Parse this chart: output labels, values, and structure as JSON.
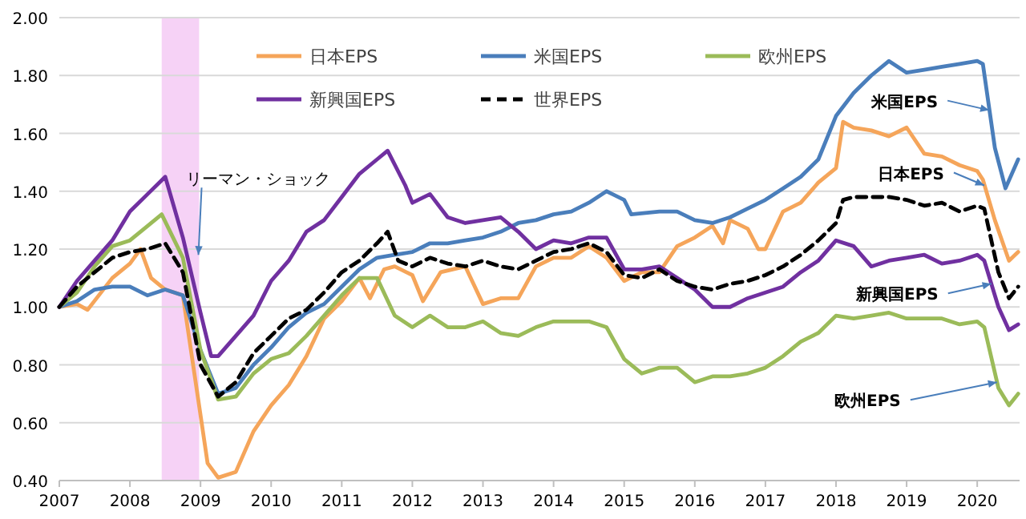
{
  "chart_data": {
    "type": "line",
    "xlim": [
      2007,
      2020.6
    ],
    "xticks": [
      2007,
      2008,
      2009,
      2010,
      2011,
      2012,
      2013,
      2014,
      2015,
      2016,
      2017,
      2018,
      2019,
      2020
    ],
    "ylim": [
      0.4,
      2.0
    ],
    "yticks": [
      {
        "value": 0.4,
        "label": "0.40"
      },
      {
        "value": 0.6,
        "label": "0.60"
      },
      {
        "value": 0.8,
        "label": "0.80"
      },
      {
        "value": 1.0,
        "label": "1.00"
      },
      {
        "value": 1.2,
        "label": "1.20"
      },
      {
        "value": 1.4,
        "label": "1.40"
      },
      {
        "value": 1.6,
        "label": "1.60"
      },
      {
        "value": 1.8,
        "label": "1.80"
      },
      {
        "value": 2.0,
        "label": "2.00"
      }
    ],
    "grid": "y",
    "legend": "top",
    "bands": [
      {
        "axis": "x",
        "from": 2008.45,
        "to": 2008.98,
        "color": "#f6d2f6"
      }
    ],
    "annotations": [
      {
        "text": "リーマン・ショック",
        "x": 2008.97,
        "y": 1.18
      },
      {
        "text": "米国EPS",
        "x": 2020.17,
        "y": 1.68
      },
      {
        "text": "日本EPS",
        "x": 2020.1,
        "y": 1.42
      },
      {
        "text": "新興国EPS",
        "x": 2020.2,
        "y": 1.08
      },
      {
        "text": "欧州EPS",
        "x": 2020.28,
        "y": 0.74
      }
    ],
    "series": [
      {
        "name": "日本EPS",
        "color": "#f5a55a",
        "x": [
          2007,
          2007.25,
          2007.4,
          2007.75,
          2008,
          2008.15,
          2008.3,
          2008.5,
          2008.75,
          2009.1,
          2009.25,
          2009.5,
          2009.75,
          2010,
          2010.25,
          2010.5,
          2010.75,
          2011,
          2011.25,
          2011.4,
          2011.6,
          2011.75,
          2012,
          2012.15,
          2012.4,
          2012.75,
          2013,
          2013.25,
          2013.5,
          2013.75,
          2014,
          2014.25,
          2014.5,
          2014.75,
          2015,
          2015.25,
          2015.5,
          2015.75,
          2016,
          2016.25,
          2016.4,
          2016.5,
          2016.75,
          2016.9,
          2017,
          2017.25,
          2017.5,
          2017.75,
          2018,
          2018.1,
          2018.25,
          2018.5,
          2018.75,
          2019,
          2019.25,
          2019.5,
          2019.75,
          2020,
          2020.08,
          2020.25,
          2020.45,
          2020.58
        ],
        "values": [
          1.0,
          1.01,
          0.99,
          1.1,
          1.15,
          1.2,
          1.1,
          1.06,
          1.04,
          0.46,
          0.41,
          0.43,
          0.57,
          0.66,
          0.73,
          0.83,
          0.96,
          1.02,
          1.1,
          1.03,
          1.13,
          1.14,
          1.11,
          1.02,
          1.12,
          1.14,
          1.01,
          1.03,
          1.03,
          1.14,
          1.17,
          1.17,
          1.21,
          1.17,
          1.09,
          1.12,
          1.12,
          1.21,
          1.24,
          1.28,
          1.22,
          1.3,
          1.27,
          1.2,
          1.2,
          1.33,
          1.36,
          1.43,
          1.48,
          1.64,
          1.62,
          1.61,
          1.59,
          1.62,
          1.53,
          1.52,
          1.49,
          1.47,
          1.44,
          1.3,
          1.16,
          1.19
        ]
      },
      {
        "name": "米国EPS",
        "color": "#4a7ebb",
        "x": [
          2007,
          2007.25,
          2007.5,
          2007.75,
          2008,
          2008.25,
          2008.5,
          2008.75,
          2009,
          2009.25,
          2009.5,
          2009.75,
          2010,
          2010.25,
          2010.5,
          2010.75,
          2011,
          2011.25,
          2011.5,
          2011.75,
          2012,
          2012.25,
          2012.5,
          2012.75,
          2013,
          2013.25,
          2013.5,
          2013.75,
          2014,
          2014.25,
          2014.5,
          2014.75,
          2015,
          2015.1,
          2015.5,
          2015.75,
          2016,
          2016.25,
          2016.5,
          2016.75,
          2017,
          2017.25,
          2017.5,
          2017.75,
          2018,
          2018.25,
          2018.5,
          2018.75,
          2019,
          2019.25,
          2019.5,
          2019.75,
          2020,
          2020.08,
          2020.25,
          2020.4,
          2020.58
        ],
        "values": [
          1.0,
          1.02,
          1.06,
          1.07,
          1.07,
          1.04,
          1.06,
          1.04,
          0.85,
          0.7,
          0.72,
          0.8,
          0.86,
          0.93,
          0.98,
          1.01,
          1.07,
          1.13,
          1.17,
          1.18,
          1.19,
          1.22,
          1.22,
          1.23,
          1.24,
          1.26,
          1.29,
          1.3,
          1.32,
          1.33,
          1.36,
          1.4,
          1.37,
          1.32,
          1.33,
          1.33,
          1.3,
          1.29,
          1.31,
          1.34,
          1.37,
          1.41,
          1.45,
          1.51,
          1.66,
          1.74,
          1.8,
          1.85,
          1.81,
          1.82,
          1.83,
          1.84,
          1.85,
          1.84,
          1.55,
          1.41,
          1.51
        ]
      },
      {
        "name": "欧州EPS",
        "color": "#9bbb59",
        "x": [
          2007,
          2007.25,
          2007.5,
          2007.75,
          2008,
          2008.25,
          2008.45,
          2008.75,
          2009,
          2009.25,
          2009.5,
          2009.75,
          2010,
          2010.25,
          2010.5,
          2010.75,
          2011,
          2011.25,
          2011.5,
          2011.75,
          2012,
          2012.25,
          2012.5,
          2012.75,
          2013,
          2013.25,
          2013.5,
          2013.75,
          2014,
          2014.5,
          2014.75,
          2015,
          2015.25,
          2015.5,
          2015.75,
          2016,
          2016.25,
          2016.5,
          2016.75,
          2017,
          2017.25,
          2017.5,
          2017.75,
          2018,
          2018.25,
          2018.5,
          2018.75,
          2019,
          2019.25,
          2019.5,
          2019.75,
          2020,
          2020.1,
          2020.3,
          2020.45,
          2020.58
        ],
        "values": [
          1.0,
          1.05,
          1.14,
          1.21,
          1.23,
          1.28,
          1.32,
          1.17,
          0.85,
          0.68,
          0.69,
          0.77,
          0.82,
          0.84,
          0.9,
          0.97,
          1.04,
          1.1,
          1.1,
          0.97,
          0.93,
          0.97,
          0.93,
          0.93,
          0.95,
          0.91,
          0.9,
          0.93,
          0.95,
          0.95,
          0.93,
          0.82,
          0.77,
          0.79,
          0.79,
          0.74,
          0.76,
          0.76,
          0.77,
          0.79,
          0.83,
          0.88,
          0.91,
          0.97,
          0.96,
          0.97,
          0.98,
          0.96,
          0.96,
          0.96,
          0.94,
          0.95,
          0.93,
          0.72,
          0.66,
          0.7
        ]
      },
      {
        "name": "新興国EPS",
        "color": "#7030a0",
        "x": [
          2007,
          2007.25,
          2007.5,
          2007.75,
          2008,
          2008.25,
          2008.5,
          2008.75,
          2009,
          2009.15,
          2009.25,
          2009.5,
          2009.75,
          2010,
          2010.25,
          2010.5,
          2010.75,
          2011,
          2011.25,
          2011.5,
          2011.65,
          2011.9,
          2012,
          2012.25,
          2012.5,
          2012.75,
          2013,
          2013.25,
          2013.5,
          2013.75,
          2014,
          2014.25,
          2014.5,
          2014.75,
          2015,
          2015.25,
          2015.5,
          2015.75,
          2016,
          2016.25,
          2016.5,
          2016.75,
          2017,
          2017.25,
          2017.5,
          2017.75,
          2018,
          2018.25,
          2018.5,
          2018.75,
          2019,
          2019.25,
          2019.5,
          2019.75,
          2020,
          2020.1,
          2020.3,
          2020.45,
          2020.58
        ],
        "values": [
          1.0,
          1.09,
          1.16,
          1.23,
          1.33,
          1.39,
          1.45,
          1.24,
          0.98,
          0.83,
          0.83,
          0.9,
          0.97,
          1.09,
          1.16,
          1.26,
          1.3,
          1.38,
          1.46,
          1.51,
          1.54,
          1.42,
          1.36,
          1.39,
          1.31,
          1.29,
          1.3,
          1.31,
          1.26,
          1.2,
          1.23,
          1.22,
          1.24,
          1.24,
          1.13,
          1.13,
          1.14,
          1.1,
          1.06,
          1.0,
          1.0,
          1.03,
          1.05,
          1.07,
          1.12,
          1.16,
          1.23,
          1.21,
          1.14,
          1.16,
          1.17,
          1.18,
          1.15,
          1.16,
          1.18,
          1.16,
          1.0,
          0.92,
          0.94
        ]
      },
      {
        "name": "世界EPS",
        "color": "#000000",
        "line_style": "dashed",
        "x": [
          2007,
          2007.25,
          2007.5,
          2007.75,
          2008,
          2008.25,
          2008.5,
          2008.75,
          2009,
          2009.25,
          2009.5,
          2009.75,
          2010,
          2010.25,
          2010.5,
          2010.75,
          2011,
          2011.25,
          2011.5,
          2011.65,
          2011.8,
          2012,
          2012.25,
          2012.5,
          2012.75,
          2013,
          2013.25,
          2013.5,
          2013.75,
          2014,
          2014.25,
          2014.5,
          2014.75,
          2015,
          2015.25,
          2015.5,
          2015.75,
          2016,
          2016.25,
          2016.5,
          2016.75,
          2017,
          2017.25,
          2017.5,
          2017.75,
          2018,
          2018.1,
          2018.25,
          2018.5,
          2018.75,
          2019,
          2019.25,
          2019.5,
          2019.75,
          2020,
          2020.1,
          2020.3,
          2020.45,
          2020.58
        ],
        "values": [
          1.0,
          1.07,
          1.12,
          1.17,
          1.19,
          1.2,
          1.22,
          1.12,
          0.8,
          0.69,
          0.74,
          0.84,
          0.9,
          0.96,
          0.99,
          1.05,
          1.12,
          1.16,
          1.22,
          1.26,
          1.16,
          1.14,
          1.17,
          1.15,
          1.14,
          1.16,
          1.14,
          1.13,
          1.16,
          1.19,
          1.2,
          1.22,
          1.19,
          1.11,
          1.1,
          1.13,
          1.09,
          1.07,
          1.06,
          1.08,
          1.09,
          1.11,
          1.14,
          1.18,
          1.23,
          1.29,
          1.37,
          1.38,
          1.38,
          1.38,
          1.37,
          1.35,
          1.36,
          1.33,
          1.35,
          1.34,
          1.12,
          1.03,
          1.07
        ]
      }
    ]
  }
}
